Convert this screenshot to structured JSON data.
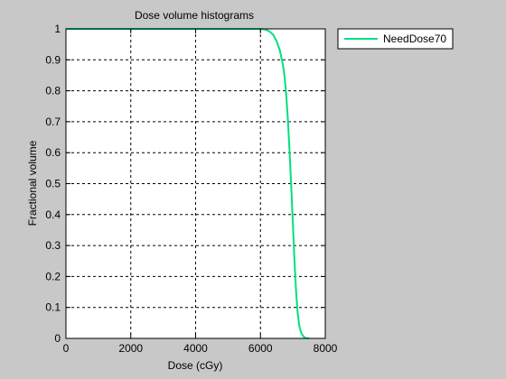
{
  "chart_data": {
    "type": "line",
    "title": "Dose volume histograms",
    "xlabel": "Dose (cGy)",
    "ylabel": "Fractional volume",
    "xlim": [
      0,
      8000
    ],
    "ylim": [
      0,
      1
    ],
    "xticks": [
      0,
      2000,
      4000,
      6000,
      8000
    ],
    "xtick_labels": [
      "0",
      "2000",
      "4000",
      "6000",
      "8000"
    ],
    "yticks": [
      0,
      0.1,
      0.2,
      0.3,
      0.4,
      0.5,
      0.6,
      0.7,
      0.8,
      0.9,
      1
    ],
    "ytick_labels": [
      "0",
      "0.1",
      "0.2",
      "0.3",
      "0.4",
      "0.5",
      "0.6",
      "0.7",
      "0.8",
      "0.9",
      "1"
    ],
    "grid": true,
    "legend_position": "outside-top-right",
    "series": [
      {
        "name": "NeedDose70",
        "color": "#00e080",
        "x": [
          0,
          6000,
          6100,
          6200,
          6300,
          6400,
          6500,
          6600,
          6700,
          6750,
          6800,
          6850,
          6900,
          6950,
          7000,
          7050,
          7100,
          7150,
          7200,
          7250,
          7300,
          7350,
          7400,
          7450,
          7500
        ],
        "y": [
          1,
          1,
          0.999,
          0.996,
          0.99,
          0.98,
          0.96,
          0.93,
          0.88,
          0.84,
          0.78,
          0.7,
          0.6,
          0.49,
          0.37,
          0.25,
          0.15,
          0.08,
          0.04,
          0.02,
          0.01,
          0.004,
          0.001,
          0,
          0
        ]
      }
    ]
  }
}
